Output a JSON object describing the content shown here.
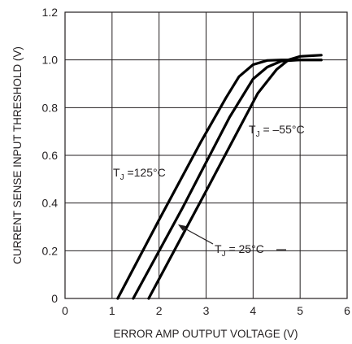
{
  "chart_data": {
    "type": "line",
    "xlabel": "ERROR AMP OUTPUT VOLTAGE (V)",
    "ylabel": "CURRENT SENSE INPUT THRESHOLD (V)",
    "xlim": [
      0,
      6
    ],
    "ylim": [
      0,
      1.2
    ],
    "xticks": [
      "0",
      "1",
      "2",
      "3",
      "4",
      "5",
      "6"
    ],
    "yticks": [
      "0",
      "0.2",
      "0.4",
      "0.6",
      "0.8",
      "1.0",
      "1.2"
    ],
    "grid": true,
    "series": [
      {
        "name": "TJ =125°C",
        "name_main": "T",
        "name_sub": "J",
        "name_rest": " =125°C",
        "x": [
          1.12,
          2.0,
          2.9,
          3.42,
          3.7,
          4.0,
          4.3,
          4.6,
          5.0,
          5.45
        ],
        "y": [
          0.0,
          0.33,
          0.66,
          0.84,
          0.93,
          0.98,
          0.998,
          1.0,
          1.0,
          1.0
        ]
      },
      {
        "name": "TJ = 25°C",
        "name_main": "T",
        "name_sub": "J",
        "name_rest": " = 25°C",
        "x": [
          1.45,
          2.5,
          3.5,
          4.0,
          4.3,
          4.6,
          5.0,
          5.45
        ],
        "y": [
          0.0,
          0.38,
          0.76,
          0.92,
          0.97,
          0.995,
          1.0,
          1.0
        ]
      },
      {
        "name": "TJ = –55°C",
        "name_main": "T",
        "name_sub": "J",
        "name_rest": " = –55°C",
        "x": [
          1.78,
          3.0,
          4.1,
          4.5,
          4.75,
          5.0,
          5.45
        ],
        "y": [
          0.0,
          0.45,
          0.86,
          0.96,
          1.0,
          1.015,
          1.02
        ]
      }
    ]
  }
}
